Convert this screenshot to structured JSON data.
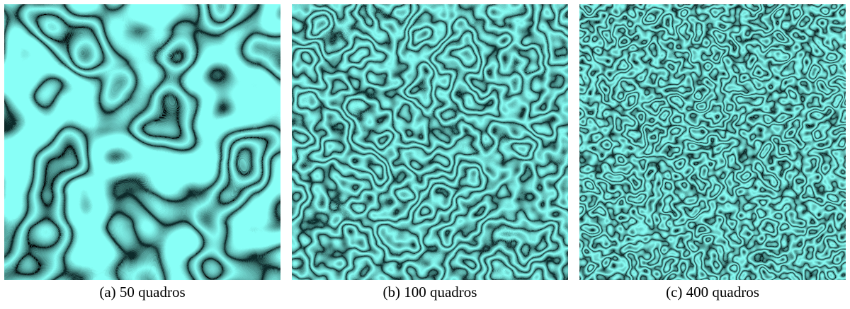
{
  "figure": {
    "panels": [
      {
        "caption": "(a) 50 quadros"
      },
      {
        "caption": "(b) 100 quadros"
      },
      {
        "caption": "(c) 400 quadros"
      }
    ]
  }
}
